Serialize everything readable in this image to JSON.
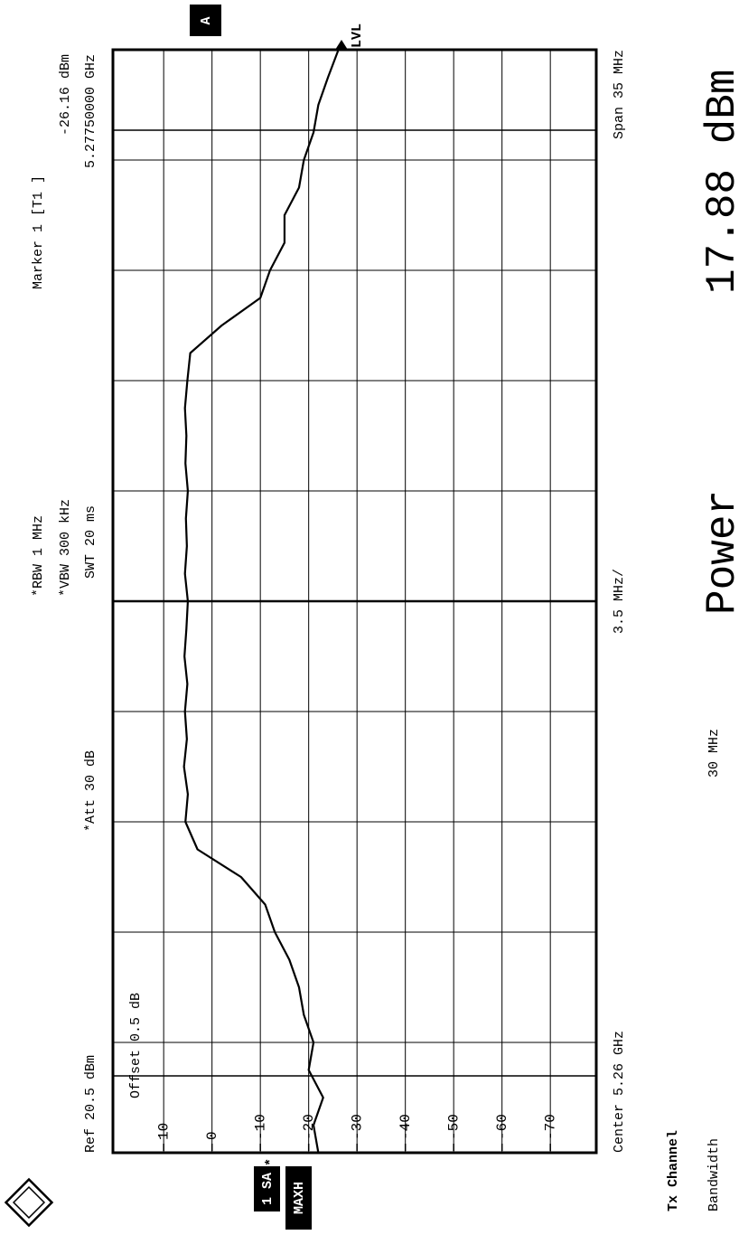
{
  "chart_data": {
    "type": "line",
    "ref_level": "Ref 20.5 dBm",
    "offset": "Offset 0.5 dB",
    "attenuation": "*Att 30 dB",
    "rbw": "*RBW 1 MHz",
    "vbw": "*VBW 300 kHz",
    "sweep_time": "SWT 20 ms",
    "marker_title": "Marker 1 [T1 ]",
    "marker_level": "-26.16 dBm",
    "marker_frequency": "5.27750000 GHz",
    "screen_label": "A",
    "level_label": "LVL",
    "trace_label": "1 SA",
    "trace_mode": "MAXH",
    "trace_flag": "*",
    "center_label": "Center 5.26 GHz",
    "division_label": "3.5 MHz/",
    "span_label": "Span 35 MHz",
    "result_heading": "Tx Channel",
    "result_name": "Bandwidth",
    "result_bandwidth": "30 MHz",
    "result_quantity": "Power",
    "result_value": "17.88 dBm",
    "xlim": [
      5.2425,
      5.2775
    ],
    "ylim": [
      -79.5,
      20.5
    ],
    "yticks": [
      10,
      0,
      -10,
      -20,
      -30,
      -40,
      -50,
      -60,
      -70
    ],
    "grid": true,
    "series": [
      {
        "name": "1 SA",
        "color": "#000000",
        "x": [
          5.2425,
          5.243375,
          5.24425,
          5.245125,
          5.246,
          5.246875,
          5.24775,
          5.248625,
          5.2495,
          5.250375,
          5.25125,
          5.252125,
          5.253,
          5.253875,
          5.25475,
          5.255625,
          5.2565,
          5.257375,
          5.25825,
          5.259125,
          5.26,
          5.260875,
          5.26175,
          5.262625,
          5.2635,
          5.264375,
          5.26525,
          5.266125,
          5.267,
          5.267875,
          5.26875,
          5.269625,
          5.2705,
          5.271375,
          5.27225,
          5.273125,
          5.274,
          5.274875,
          5.27575,
          5.276625,
          5.2775
        ],
        "values": [
          -22,
          -21,
          -23,
          -20,
          -21,
          -19,
          -18,
          -16,
          -13,
          -11,
          -6,
          3,
          5.5,
          5,
          5.8,
          5.2,
          5.6,
          5.1,
          5.7,
          5.3,
          5.0,
          5.6,
          5.2,
          5.4,
          5.0,
          5.5,
          5.3,
          5.6,
          5.1,
          4.5,
          -2,
          -10,
          -12,
          -15,
          -15,
          -18,
          -19,
          -21,
          -22,
          -24,
          -26.16
        ]
      }
    ]
  }
}
